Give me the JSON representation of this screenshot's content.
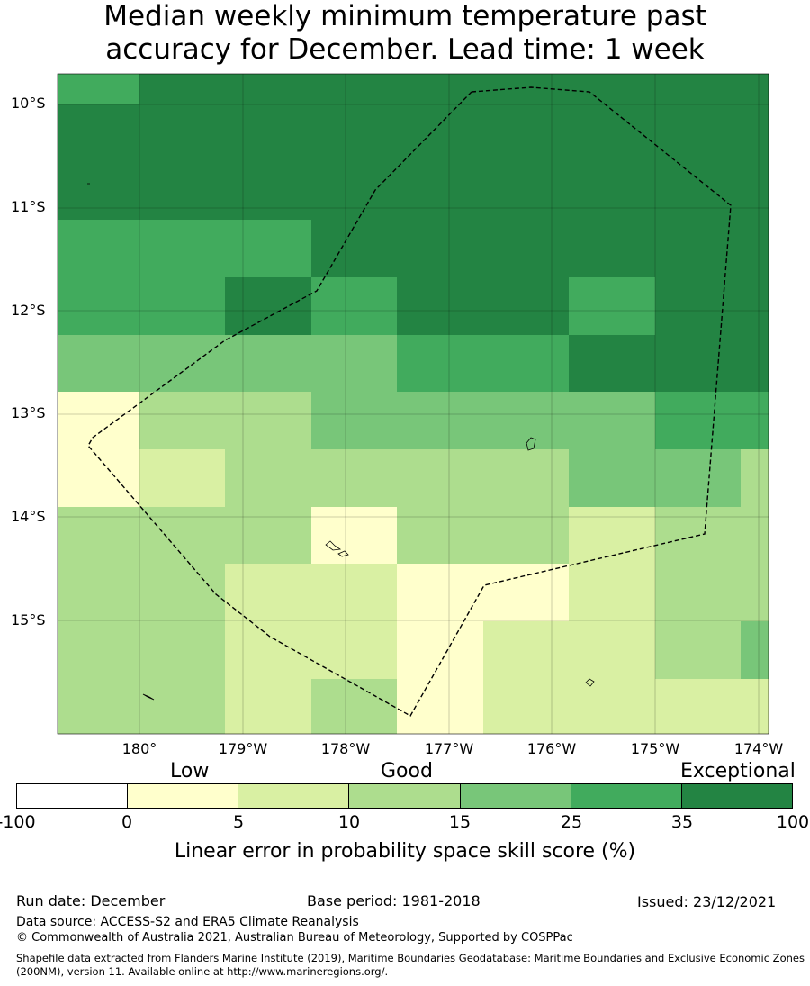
{
  "title": {
    "line1": "Median weekly minimum temperature past",
    "line2": "accuracy for December. Lead time: 1 week"
  },
  "map": {
    "lat_labels": [
      "10°S",
      "11°S",
      "12°S",
      "13°S",
      "14°S",
      "15°S"
    ],
    "lon_labels": [
      "180°",
      "179°W",
      "178°W",
      "177°W",
      "176°W",
      "175°W",
      "174°W"
    ],
    "grid_rows": [
      [
        4,
        5,
        5,
        5,
        5,
        5,
        5,
        5
      ],
      [
        5,
        5,
        5,
        5,
        5,
        5,
        5,
        5
      ],
      [
        4,
        4,
        4,
        5,
        5,
        5,
        5,
        5
      ],
      [
        4,
        4,
        5,
        4,
        5,
        5,
        4,
        5
      ],
      [
        3,
        3,
        3,
        3,
        4,
        4,
        5,
        5
      ],
      [
        1,
        2,
        2,
        3,
        3,
        3,
        3,
        4
      ],
      [
        1,
        1.5,
        2,
        2,
        2,
        2,
        3,
        3
      ],
      [
        2,
        2,
        2,
        1,
        2,
        2,
        1.5,
        2
      ],
      [
        2,
        2,
        1.5,
        1.5,
        1,
        1,
        1.5,
        2
      ],
      [
        2,
        2,
        1.5,
        1.5,
        1,
        1.5,
        1.5,
        2
      ],
      [
        2,
        2,
        1.5,
        2,
        1,
        1.5,
        1.5,
        1.5
      ]
    ],
    "boundary": "Exclusive Economic Zone (dashed)"
  },
  "colorbar": {
    "category_labels": [
      "Low",
      "Good",
      "Exceptional"
    ],
    "ticks": [
      "-100",
      "0",
      "5",
      "10",
      "15",
      "25",
      "35",
      "100"
    ],
    "colors": [
      "#ffffff",
      "#ffffcc",
      "#d9f0a3",
      "#addd8e",
      "#78c679",
      "#41ab5d",
      "#238443"
    ],
    "label": "Linear error in probability space skill score (%)"
  },
  "footer": {
    "run_date": "Run date: December",
    "base_period": "Base period: 1981-2018",
    "issued": "Issued: 23/12/2021",
    "data_source": "Data source: ACCESS-S2 and ERA5 Climate Reanalysis",
    "copyright": "© Commonwealth of Australia 2021, Australian Bureau of Meteorology, Supported by COSPPac",
    "shapefile_note": "Shapefile data extracted from Flanders Marine Institute (2019), Maritime Boundaries Geodatabase: Maritime Boundaries and Exclusive Economic Zones (200NM), version 11. Available online at http://www.marineregions.org/."
  }
}
